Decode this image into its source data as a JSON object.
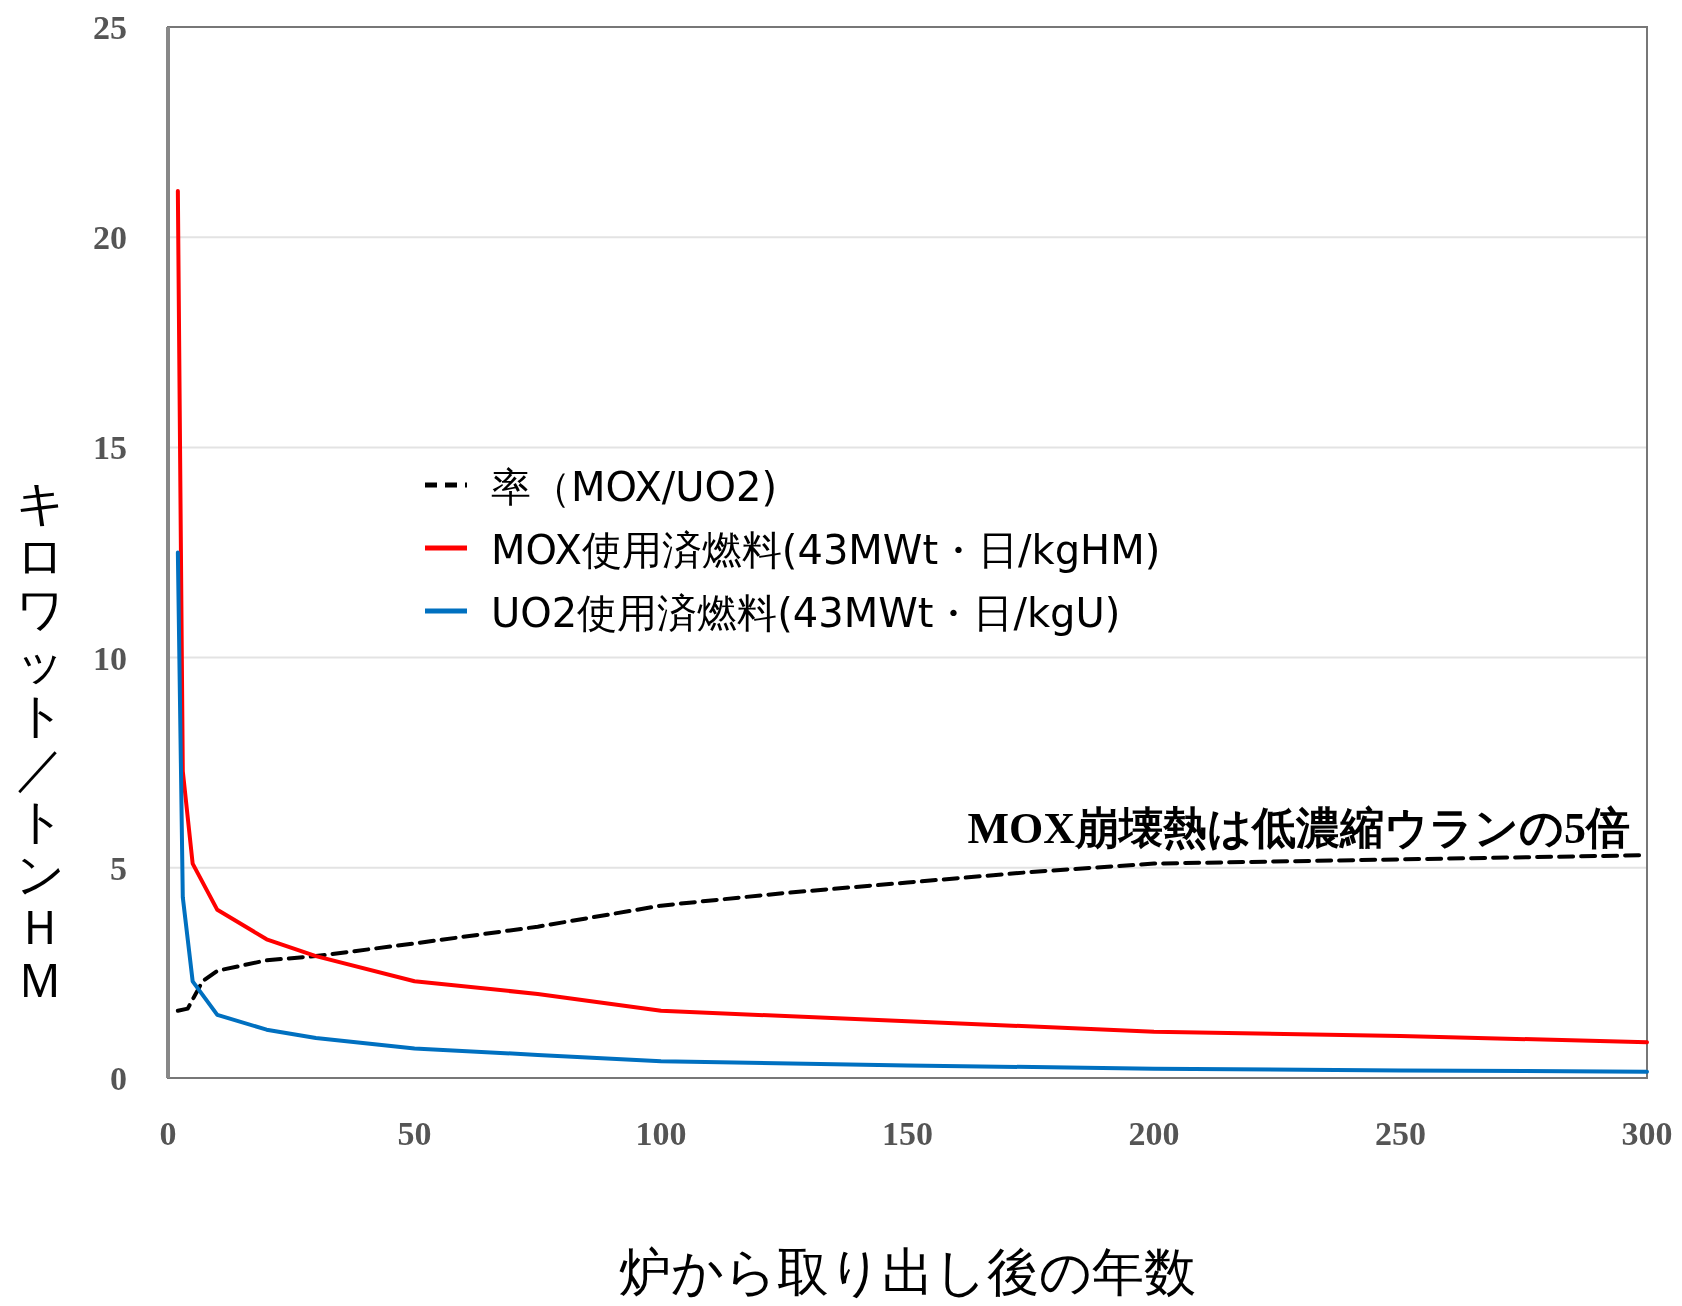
{
  "chart_data": {
    "type": "line",
    "xlabel": "炉から取り出し後の年数",
    "ylabel": "キロワット／トンＨＭ",
    "xlim": [
      0,
      300
    ],
    "xticks": [
      0,
      50,
      100,
      150,
      200,
      250,
      300
    ],
    "ylim": [
      0,
      25
    ],
    "yticks": [
      0,
      5,
      10,
      15,
      20,
      25
    ],
    "grid": "y",
    "legend": "center",
    "marker": "none",
    "annotations": [
      "MOX崩壊熱は低濃縮ウランの5倍"
    ],
    "series": [
      {
        "name": "率（MOX/UO2)",
        "color": "#000000",
        "line_style": "dashed",
        "x": [
          2,
          4,
          7,
          10,
          20,
          30,
          50,
          75,
          100,
          125,
          150,
          175,
          200,
          250,
          300
        ],
        "values": [
          1.6,
          1.65,
          2.3,
          2.55,
          2.8,
          2.9,
          3.2,
          3.6,
          4.1,
          4.4,
          4.65,
          4.9,
          5.1,
          5.2,
          5.3
        ]
      },
      {
        "name": "MOX使用済燃料(43MWt・日/kgHM)",
        "color": "#ff0000",
        "line_style": "solid",
        "x": [
          2,
          3,
          5,
          10,
          20,
          30,
          50,
          75,
          100,
          150,
          200,
          250,
          300
        ],
        "values": [
          21.1,
          7.3,
          5.1,
          4.0,
          3.3,
          2.9,
          2.3,
          2.0,
          1.6,
          1.35,
          1.1,
          1.0,
          0.85
        ]
      },
      {
        "name": "UO2使用済燃料(43MWt・日/kgU)",
        "color": "#0070c0",
        "line_style": "solid",
        "x": [
          2,
          3,
          5,
          10,
          20,
          30,
          50,
          75,
          100,
          150,
          200,
          250,
          300
        ],
        "values": [
          12.5,
          4.3,
          2.3,
          1.5,
          1.15,
          0.95,
          0.7,
          0.55,
          0.4,
          0.3,
          0.22,
          0.18,
          0.15
        ]
      }
    ]
  }
}
